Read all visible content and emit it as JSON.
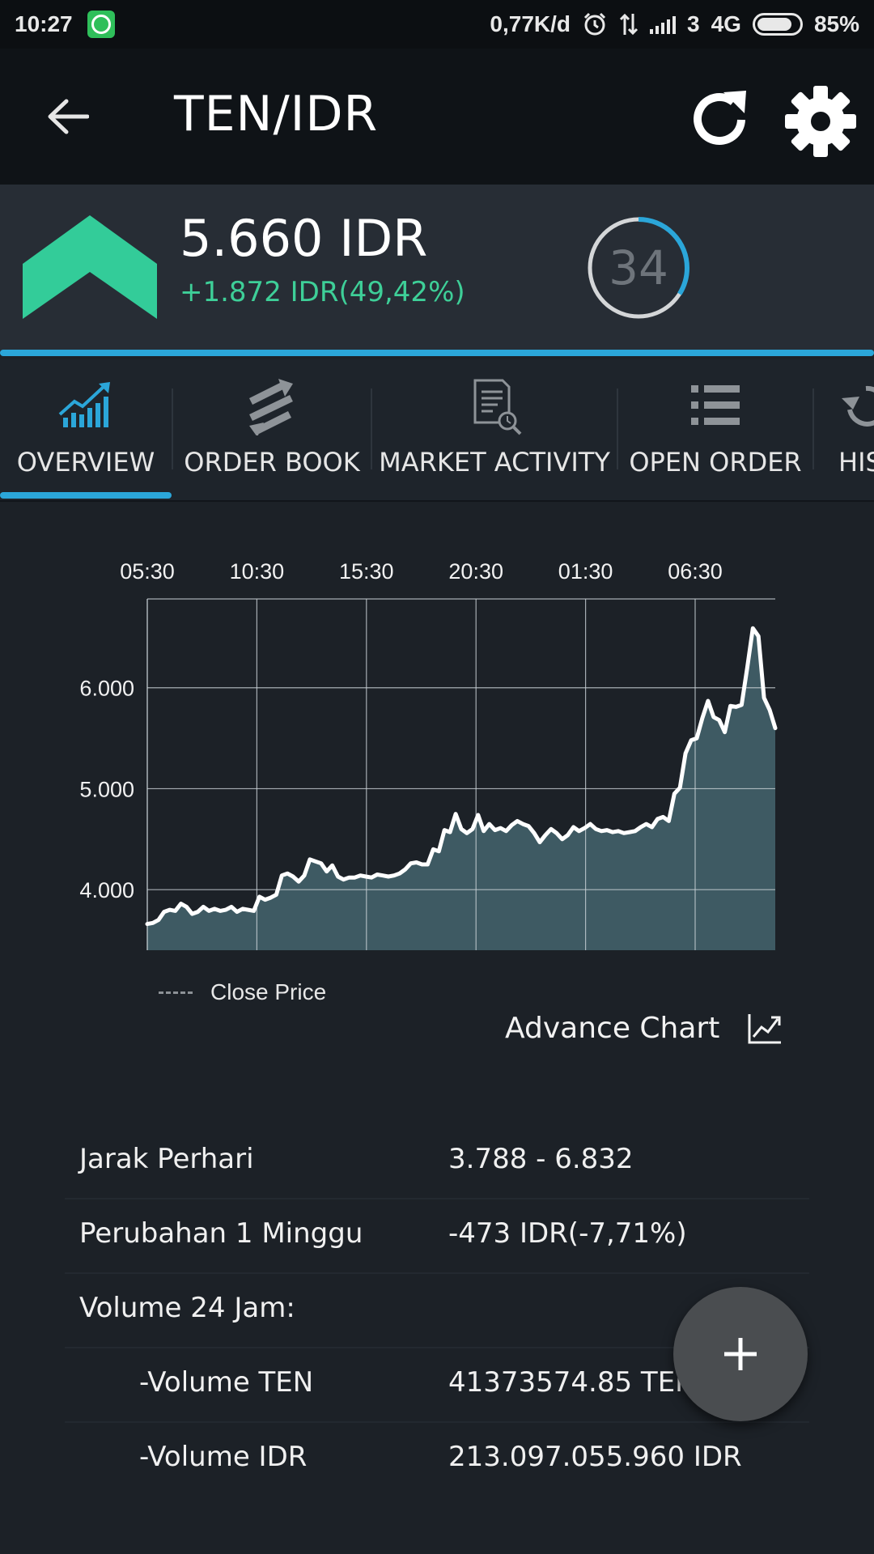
{
  "status_bar": {
    "time": "10:27",
    "speed": "0,77K/d",
    "network_sim": "3",
    "network_type": "4G",
    "battery_percent_text": "85%",
    "battery_level": 0.85
  },
  "app_bar": {
    "title": "TEN/IDR"
  },
  "price_header": {
    "price": "5.660 IDR",
    "change": "+1.872 IDR(49,42%)",
    "countdown": "34",
    "countdown_fraction": 0.34,
    "accent_up_color": "#33cc99",
    "accent_blue": "#2ba6d9"
  },
  "tabs": [
    {
      "label": "OVERVIEW",
      "icon": "chart-growth-icon",
      "active": true
    },
    {
      "label": "ORDER BOOK",
      "icon": "swap-arrows-icon",
      "active": false
    },
    {
      "label": "MARKET ACTIVITY",
      "icon": "document-search-icon",
      "active": false
    },
    {
      "label": "OPEN ORDER",
      "icon": "list-icon",
      "active": false
    },
    {
      "label": "HIS",
      "icon": "history-icon",
      "active": false
    }
  ],
  "chart_data": {
    "type": "area",
    "x_tick_labels": [
      "05:30",
      "10:30",
      "15:30",
      "20:30",
      "01:30",
      "06:30"
    ],
    "y_ticks": [
      4000,
      5000,
      6000
    ],
    "y_tick_labels": [
      "4.000",
      "5.000",
      "6.000"
    ],
    "ylim": [
      3400,
      6880
    ],
    "series": [
      {
        "name": "Close Price",
        "values": [
          3660,
          3670,
          3700,
          3780,
          3800,
          3790,
          3860,
          3830,
          3760,
          3780,
          3830,
          3790,
          3810,
          3790,
          3800,
          3830,
          3780,
          3810,
          3800,
          3790,
          3930,
          3900,
          3920,
          3950,
          4140,
          4160,
          4130,
          4080,
          4140,
          4300,
          4280,
          4260,
          4180,
          4240,
          4130,
          4100,
          4120,
          4120,
          4140,
          4130,
          4120,
          4150,
          4140,
          4130,
          4140,
          4160,
          4200,
          4260,
          4270,
          4250,
          4250,
          4400,
          4380,
          4590,
          4570,
          4750,
          4600,
          4560,
          4600,
          4740,
          4580,
          4650,
          4590,
          4610,
          4580,
          4640,
          4680,
          4650,
          4630,
          4560,
          4470,
          4540,
          4600,
          4560,
          4500,
          4540,
          4620,
          4580,
          4610,
          4650,
          4600,
          4580,
          4590,
          4570,
          4580,
          4560,
          4570,
          4580,
          4620,
          4650,
          4620,
          4700,
          4720,
          4680,
          4950,
          5010,
          5350,
          5480,
          5500,
          5700,
          5870,
          5710,
          5680,
          5560,
          5820,
          5810,
          5830,
          6200,
          6590,
          6510,
          5900,
          5780,
          5600
        ],
        "fill_color": "#3e5a63",
        "line_color": "#ffffff"
      }
    ],
    "grid": true
  },
  "legend": {
    "label": "Close Price"
  },
  "advance_chart": {
    "label": "Advance Chart"
  },
  "stats": [
    {
      "label": "Jarak Perhari",
      "value": "3.788 - 6.832",
      "indent": false
    },
    {
      "label": "Perubahan 1 Minggu",
      "value": "-473 IDR(-7,71%)",
      "indent": false
    },
    {
      "label": "Volume 24 Jam:",
      "value": "",
      "indent": false
    },
    {
      "label": "-Volume TEN",
      "value": "41373574.85 TEN",
      "indent": true
    },
    {
      "label": "-Volume IDR",
      "value": "213.097.055.960 IDR",
      "indent": true
    }
  ]
}
